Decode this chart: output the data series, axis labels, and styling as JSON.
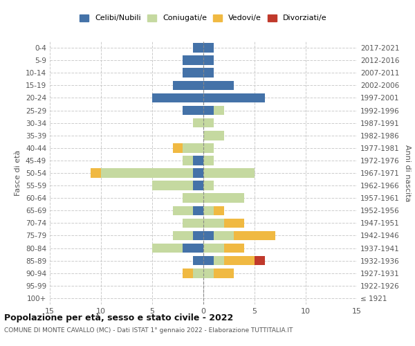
{
  "age_groups": [
    "100+",
    "95-99",
    "90-94",
    "85-89",
    "80-84",
    "75-79",
    "70-74",
    "65-69",
    "60-64",
    "55-59",
    "50-54",
    "45-49",
    "40-44",
    "35-39",
    "30-34",
    "25-29",
    "20-24",
    "15-19",
    "10-14",
    "5-9",
    "0-4"
  ],
  "birth_years": [
    "≤ 1921",
    "1922-1926",
    "1927-1931",
    "1932-1936",
    "1937-1941",
    "1942-1946",
    "1947-1951",
    "1952-1956",
    "1957-1961",
    "1962-1966",
    "1967-1971",
    "1972-1976",
    "1977-1981",
    "1982-1986",
    "1987-1991",
    "1992-1996",
    "1997-2001",
    "2002-2006",
    "2007-2011",
    "2012-2016",
    "2017-2021"
  ],
  "male": {
    "celibi": [
      0,
      0,
      0,
      1,
      2,
      1,
      0,
      1,
      0,
      1,
      1,
      1,
      0,
      0,
      0,
      2,
      5,
      3,
      2,
      2,
      1
    ],
    "coniugati": [
      0,
      0,
      1,
      0,
      3,
      2,
      2,
      2,
      2,
      4,
      9,
      1,
      2,
      0,
      1,
      0,
      0,
      0,
      0,
      0,
      0
    ],
    "vedovi": [
      0,
      0,
      1,
      0,
      0,
      0,
      0,
      0,
      0,
      0,
      1,
      0,
      1,
      0,
      0,
      0,
      0,
      0,
      0,
      0,
      0
    ],
    "divorziati": [
      0,
      0,
      0,
      0,
      0,
      0,
      0,
      0,
      0,
      0,
      0,
      0,
      0,
      0,
      0,
      0,
      0,
      0,
      0,
      0,
      0
    ]
  },
  "female": {
    "nubili": [
      0,
      0,
      0,
      1,
      0,
      1,
      0,
      0,
      0,
      0,
      0,
      0,
      0,
      0,
      0,
      1,
      6,
      3,
      1,
      1,
      1
    ],
    "coniugate": [
      0,
      0,
      1,
      1,
      2,
      2,
      2,
      1,
      4,
      1,
      5,
      1,
      1,
      2,
      1,
      1,
      0,
      0,
      0,
      0,
      0
    ],
    "vedove": [
      0,
      0,
      2,
      3,
      2,
      4,
      2,
      1,
      0,
      0,
      0,
      0,
      0,
      0,
      0,
      0,
      0,
      0,
      0,
      0,
      0
    ],
    "divorziate": [
      0,
      0,
      0,
      1,
      0,
      0,
      0,
      0,
      0,
      0,
      0,
      0,
      0,
      0,
      0,
      0,
      0,
      0,
      0,
      0,
      0
    ]
  },
  "color_celibi": "#4472a8",
  "color_coniugati": "#c5d9a0",
  "color_vedovi": "#f0b942",
  "color_divorziati": "#c0392b",
  "xlim": 15,
  "title": "Popolazione per età, sesso e stato civile - 2022",
  "subtitle": "COMUNE DI MONTE CAVALLO (MC) - Dati ISTAT 1° gennaio 2022 - Elaborazione TUTTITALIA.IT",
  "ylabel_left": "Fasce di età",
  "ylabel_right": "Anni di nascita"
}
